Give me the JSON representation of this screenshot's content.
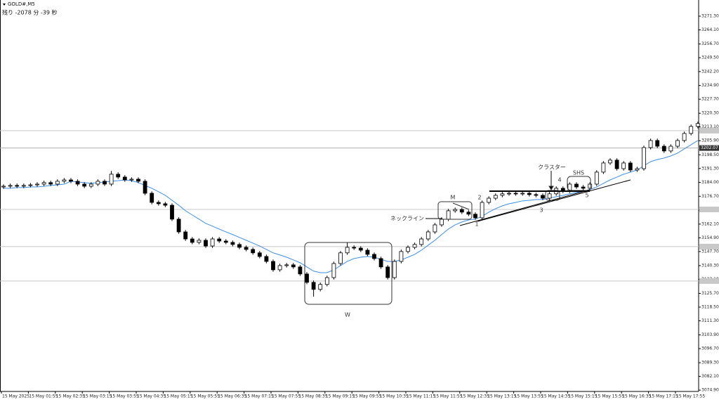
{
  "chart_data": {
    "type": "candlestick",
    "symbol": "GOLD#,M5",
    "countdown": "残り -2078 分 -39 秒",
    "ylim": [
      3074.2,
      3279.8
    ],
    "yticks": [
      {
        "value": 3271.3,
        "label": "3271.30"
      },
      {
        "value": 3264.1,
        "label": "3264.10"
      },
      {
        "value": 3256.7,
        "label": "3256.70"
      },
      {
        "value": 3249.5,
        "label": "3249.50"
      },
      {
        "value": 3242.2,
        "label": "3242.20"
      },
      {
        "value": 3234.9,
        "label": "3234.90"
      },
      {
        "value": 3227.7,
        "label": "3227.70"
      },
      {
        "value": 3220.3,
        "label": "3220.30"
      },
      {
        "value": 3213.1,
        "label": "3213.10"
      },
      {
        "value": 3205.9,
        "label": "3205.90"
      },
      {
        "value": 3198.5,
        "label": "3198.50"
      },
      {
        "value": 3191.3,
        "label": "3191.30"
      },
      {
        "value": 3184,
        "label": "3184.00"
      },
      {
        "value": 3176.7,
        "label": "3176.70"
      },
      {
        "value": 3169.5,
        "label": "3169.50"
      },
      {
        "value": 3162.1,
        "label": "3162.10"
      },
      {
        "value": 3154.9,
        "label": "3154.90"
      },
      {
        "value": 3147.7,
        "label": "3147.70"
      },
      {
        "value": 3140.3,
        "label": "3140.30"
      },
      {
        "value": 3133.1,
        "label": "3133.10"
      },
      {
        "value": 3125.7,
        "label": "3125.70"
      },
      {
        "value": 3118.5,
        "label": "3118.50"
      },
      {
        "value": 3111.3,
        "label": "3111.30"
      },
      {
        "value": 3103.9,
        "label": "3103.90"
      },
      {
        "value": 3096.7,
        "label": "3096.70"
      },
      {
        "value": 3089.3,
        "label": "3089.30"
      },
      {
        "value": 3082.1,
        "label": "3082.10"
      },
      {
        "value": 3074.9,
        "label": "3074.90"
      }
    ],
    "categories": [
      "15 May 2025",
      null,
      null,
      null,
      "15 May 01:55",
      null,
      null,
      null,
      "15 May 02:35",
      null,
      null,
      null,
      "15 May 03:15",
      null,
      null,
      null,
      "15 May 03:55",
      null,
      null,
      null,
      "15 May 04:35",
      null,
      null,
      null,
      "15 May 05:15",
      null,
      null,
      null,
      "15 May 05:55",
      null,
      null,
      null,
      "15 May 06:35",
      null,
      null,
      null,
      "15 May 07:15",
      null,
      null,
      null,
      "15 May 07:55",
      null,
      null,
      null,
      "15 May 08:35",
      null,
      null,
      null,
      "15 May 09:15",
      null,
      null,
      null,
      "15 May 09:55",
      null,
      null,
      null,
      "15 May 10:35",
      null,
      null,
      null,
      "15 May 11:15",
      null,
      null,
      null,
      "15 May 11:55",
      null,
      null,
      null,
      "15 May 12:35",
      null,
      null,
      null,
      "15 May 13:15",
      null,
      null,
      null,
      "15 May 13:55",
      null,
      null,
      null,
      "15 May 14:35",
      null,
      null,
      null,
      "15 May 15:15",
      null,
      null,
      null,
      "15 May 15:55",
      null,
      null,
      null,
      "15 May 16:35",
      null,
      null,
      null,
      "15 May 17:15",
      null,
      null,
      null,
      "15 May 17:55",
      null,
      null,
      null
    ],
    "ohlc": [
      [
        3181.6,
        3183.0,
        3180.6,
        3182.0
      ],
      [
        3182.0,
        3183.4,
        3181.0,
        3182.4
      ],
      [
        3182.4,
        3183.4,
        3181.0,
        3182.0
      ],
      [
        3182.0,
        3183.4,
        3181.0,
        3182.4
      ],
      [
        3182.4,
        3183.7,
        3181.4,
        3182.7
      ],
      [
        3182.7,
        3184.1,
        3181.7,
        3183.1
      ],
      [
        3183.1,
        3184.9,
        3182.1,
        3183.9
      ],
      [
        3183.9,
        3184.9,
        3182.1,
        3183.1
      ],
      [
        3183.1,
        3185.6,
        3182.1,
        3184.6
      ],
      [
        3184.6,
        3186.3,
        3183.6,
        3185.3
      ],
      [
        3185.3,
        3186.3,
        3183.6,
        3184.6
      ],
      [
        3184.6,
        3185.6,
        3182.1,
        3183.1
      ],
      [
        3183.1,
        3184.1,
        3181.0,
        3182.0
      ],
      [
        3182.0,
        3184.1,
        3181.0,
        3183.1
      ],
      [
        3183.1,
        3185.6,
        3182.1,
        3184.6
      ],
      [
        3184.6,
        3185.6,
        3182.1,
        3183.1
      ],
      [
        3183.1,
        3190.0,
        3182.1,
        3188.3
      ],
      [
        3188.3,
        3189.3,
        3185.8,
        3186.8
      ],
      [
        3186.8,
        3187.8,
        3184.3,
        3185.3
      ],
      [
        3185.3,
        3186.7,
        3184.3,
        3185.7
      ],
      [
        3185.7,
        3186.7,
        3183.6,
        3184.6
      ],
      [
        3184.6,
        3185.6,
        3177.3,
        3178.3
      ],
      [
        3178.3,
        3179.3,
        3172.5,
        3173.5
      ],
      [
        3173.5,
        3174.5,
        3171.8,
        3172.8
      ],
      [
        3172.8,
        3173.8,
        3171.0,
        3172.0
      ],
      [
        3172.0,
        3173.0,
        3163.7,
        3164.7
      ],
      [
        3164.7,
        3165.7,
        3157.0,
        3158.0
      ],
      [
        3158.0,
        3159.0,
        3153.3,
        3154.3
      ],
      [
        3154.3,
        3155.3,
        3151.5,
        3152.5
      ],
      [
        3152.5,
        3154.6,
        3151.5,
        3153.6
      ],
      [
        3153.6,
        3154.6,
        3149.6,
        3150.6
      ],
      [
        3150.6,
        3155.3,
        3149.6,
        3154.3
      ],
      [
        3154.3,
        3155.3,
        3152.2,
        3153.2
      ],
      [
        3153.2,
        3154.2,
        3151.5,
        3152.5
      ],
      [
        3152.5,
        3153.5,
        3150.4,
        3151.4
      ],
      [
        3151.4,
        3152.4,
        3148.9,
        3149.9
      ],
      [
        3149.9,
        3150.9,
        3147.8,
        3148.8
      ],
      [
        3148.8,
        3149.8,
        3146.0,
        3147.0
      ],
      [
        3147.0,
        3148.0,
        3144.1,
        3145.1
      ],
      [
        3145.1,
        3146.1,
        3141.5,
        3142.5
      ],
      [
        3142.5,
        3143.5,
        3137.1,
        3138.1
      ],
      [
        3138.1,
        3141.3,
        3137.1,
        3140.3
      ],
      [
        3140.3,
        3141.7,
        3139.3,
        3140.7
      ],
      [
        3140.7,
        3141.7,
        3138.6,
        3139.6
      ],
      [
        3139.6,
        3140.6,
        3134.9,
        3135.9
      ],
      [
        3135.9,
        3136.9,
        3130.5,
        3131.5
      ],
      [
        3131.5,
        3132.5,
        3124.0,
        3127.8
      ],
      [
        3127.8,
        3131.4,
        3126.8,
        3130.4
      ],
      [
        3130.4,
        3135.0,
        3129.4,
        3134.0
      ],
      [
        3134.0,
        3142.4,
        3133.0,
        3141.4
      ],
      [
        3141.4,
        3148.0,
        3140.4,
        3147.0
      ],
      [
        3147.0,
        3152.5,
        3146.0,
        3149.9
      ],
      [
        3149.9,
        3150.9,
        3148.5,
        3149.5
      ],
      [
        3149.5,
        3150.5,
        3147.4,
        3148.4
      ],
      [
        3148.4,
        3149.4,
        3145.2,
        3146.2
      ],
      [
        3146.2,
        3147.2,
        3143.0,
        3144.0
      ],
      [
        3144.0,
        3145.0,
        3138.6,
        3139.6
      ],
      [
        3139.6,
        3140.6,
        3133.0,
        3134.0
      ],
      [
        3134.0,
        3143.5,
        3133.0,
        3142.5
      ],
      [
        3142.5,
        3148.7,
        3141.5,
        3147.7
      ],
      [
        3147.7,
        3150.9,
        3146.7,
        3149.9
      ],
      [
        3149.9,
        3152.4,
        3148.9,
        3151.4
      ],
      [
        3151.4,
        3155.3,
        3150.4,
        3154.3
      ],
      [
        3154.3,
        3159.0,
        3153.3,
        3158.0
      ],
      [
        3158.0,
        3162.7,
        3157.0,
        3161.7
      ],
      [
        3161.7,
        3165.7,
        3160.7,
        3164.7
      ],
      [
        3164.7,
        3170.1,
        3163.7,
        3169.1
      ],
      [
        3169.1,
        3170.8,
        3168.1,
        3169.8
      ],
      [
        3169.8,
        3170.8,
        3167.4,
        3168.4
      ],
      [
        3168.4,
        3169.4,
        3166.3,
        3167.3
      ],
      [
        3167.3,
        3168.3,
        3164.4,
        3165.4
      ],
      [
        3165.4,
        3174.5,
        3164.4,
        3173.5
      ],
      [
        3173.5,
        3176.7,
        3172.5,
        3175.7
      ],
      [
        3175.7,
        3178.2,
        3174.7,
        3177.2
      ],
      [
        3177.2,
        3179.0,
        3176.2,
        3178.0
      ],
      [
        3178.0,
        3179.3,
        3177.0,
        3178.3
      ],
      [
        3178.3,
        3179.3,
        3177.0,
        3178.0
      ],
      [
        3178.0,
        3179.3,
        3177.0,
        3178.3
      ],
      [
        3178.3,
        3179.3,
        3176.6,
        3177.6
      ],
      [
        3177.6,
        3178.6,
        3176.2,
        3177.2
      ],
      [
        3177.2,
        3178.2,
        3174.7,
        3175.7
      ],
      [
        3175.7,
        3179.0,
        3174.7,
        3178.0
      ],
      [
        3178.0,
        3181.9,
        3177.0,
        3180.9
      ],
      [
        3180.9,
        3181.9,
        3178.4,
        3179.4
      ],
      [
        3179.4,
        3184.1,
        3178.4,
        3183.1
      ],
      [
        3183.1,
        3184.1,
        3180.6,
        3181.6
      ],
      [
        3181.6,
        3182.6,
        3179.9,
        3180.9
      ],
      [
        3180.9,
        3184.1,
        3179.9,
        3183.1
      ],
      [
        3183.1,
        3190.4,
        3182.1,
        3189.4
      ],
      [
        3189.4,
        3195.2,
        3188.4,
        3194.2
      ],
      [
        3194.2,
        3196.7,
        3193.2,
        3195.7
      ],
      [
        3195.7,
        3196.7,
        3190.2,
        3191.2
      ],
      [
        3191.2,
        3195.2,
        3190.2,
        3194.2
      ],
      [
        3194.2,
        3195.2,
        3189.5,
        3190.5
      ],
      [
        3190.5,
        3192.2,
        3189.5,
        3191.2
      ],
      [
        3191.2,
        3203.3,
        3190.2,
        3202.3
      ],
      [
        3202.3,
        3207.0,
        3201.3,
        3206.0
      ],
      [
        3206.0,
        3207.0,
        3202.0,
        3203.0
      ],
      [
        3203.0,
        3204.0,
        3199.5,
        3200.5
      ],
      [
        3200.5,
        3204.0,
        3199.5,
        3203.0
      ],
      [
        3203.0,
        3207.0,
        3202.0,
        3206.0
      ],
      [
        3206.0,
        3210.7,
        3205.0,
        3209.7
      ],
      [
        3209.7,
        3214.4,
        3208.7,
        3213.4
      ],
      [
        3213.4,
        3215.9,
        3212.4,
        3214.9
      ]
    ],
    "ma": {
      "color": "#3d8fe6",
      "values": [
        3180.9,
        3180.9,
        3181.3,
        3181.3,
        3181.6,
        3181.6,
        3182.0,
        3182.4,
        3182.7,
        3183.1,
        3184.6,
        3184.2,
        3183.9,
        3183.5,
        3183.9,
        3184.2,
        3184.6,
        3184.9,
        3185.3,
        3184.9,
        3183.9,
        3182.4,
        3180.9,
        3179.1,
        3177.2,
        3174.6,
        3172.0,
        3169.1,
        3166.9,
        3164.7,
        3162.5,
        3161.0,
        3159.5,
        3158.0,
        3156.6,
        3155.1,
        3153.6,
        3152.1,
        3150.6,
        3148.8,
        3147.0,
        3145.9,
        3144.7,
        3143.3,
        3141.8,
        3139.6,
        3137.4,
        3136.6,
        3136.6,
        3138.1,
        3140.3,
        3142.5,
        3144.0,
        3144.7,
        3145.1,
        3144.7,
        3143.6,
        3142.5,
        3142.5,
        3143.3,
        3144.7,
        3146.2,
        3148.4,
        3151.0,
        3153.6,
        3156.6,
        3159.5,
        3161.7,
        3163.2,
        3164.3,
        3164.7,
        3166.2,
        3168.4,
        3170.2,
        3171.7,
        3172.8,
        3173.5,
        3174.3,
        3174.6,
        3175.0,
        3175.0,
        3175.7,
        3176.5,
        3177.2,
        3178.0,
        3178.7,
        3179.4,
        3180.2,
        3181.6,
        3183.5,
        3185.3,
        3186.8,
        3188.3,
        3189.4,
        3190.5,
        3192.7,
        3194.9,
        3196.0,
        3196.8,
        3197.9,
        3199.4,
        3201.6,
        3203.8,
        3206.0
      ]
    },
    "bull_color": "#ffffff",
    "bear_color": "#000000",
    "price_line": {
      "value": 3202.07,
      "label": "3202.07"
    },
    "level_lines": [
      3211.2,
      3169.8,
      3150.3,
      3132.2
    ],
    "annotations": [
      "W",
      "M",
      "ネックライン",
      "クラスター",
      "SHS",
      "1",
      "2",
      "3",
      "4",
      "5"
    ]
  }
}
